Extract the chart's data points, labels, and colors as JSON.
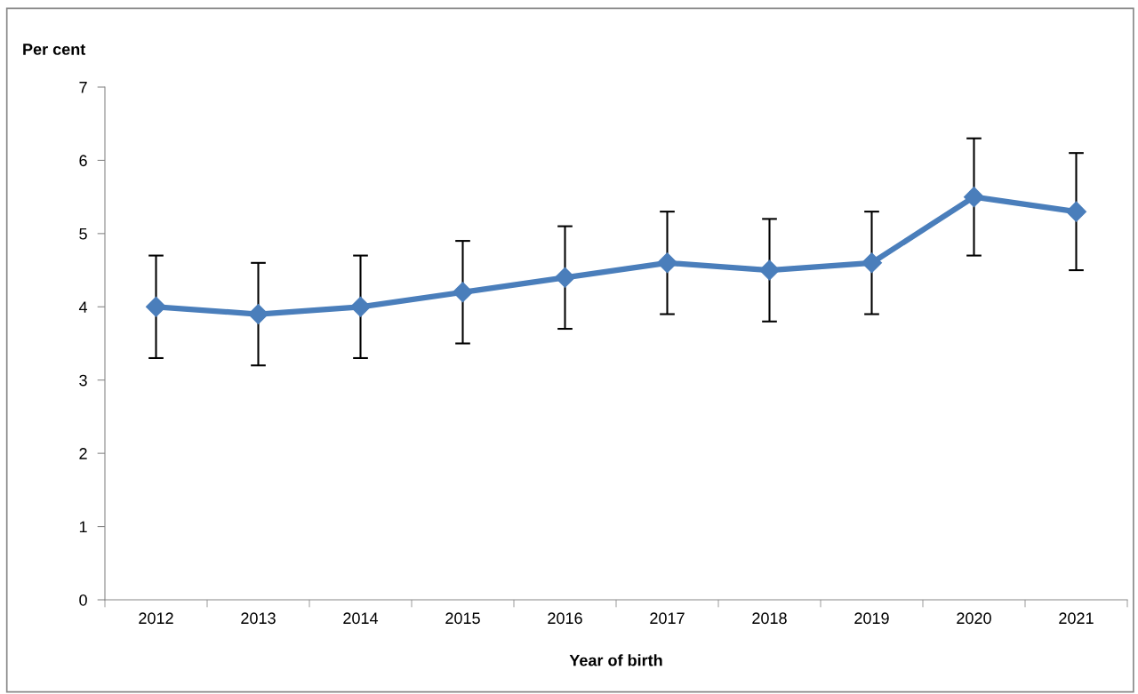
{
  "chart_data": {
    "type": "line",
    "xlabel": "Year of birth",
    "ylabel": "Per cent",
    "categories": [
      "2012",
      "2013",
      "2014",
      "2015",
      "2016",
      "2017",
      "2018",
      "2019",
      "2020",
      "2021"
    ],
    "series": [
      {
        "color": "#4a7ebb",
        "values": [
          4.0,
          3.9,
          4.0,
          4.2,
          4.4,
          4.6,
          4.5,
          4.6,
          5.5,
          5.3
        ],
        "errors": [
          0.7,
          0.7,
          0.7,
          0.7,
          0.7,
          0.7,
          0.7,
          0.7,
          0.8,
          0.8
        ]
      }
    ],
    "ylim": [
      0,
      7
    ],
    "yticks": [
      0,
      1,
      2,
      3,
      4,
      5,
      6,
      7
    ],
    "grid": false,
    "legend": false,
    "marker": "diamond",
    "line_style": "solid"
  }
}
